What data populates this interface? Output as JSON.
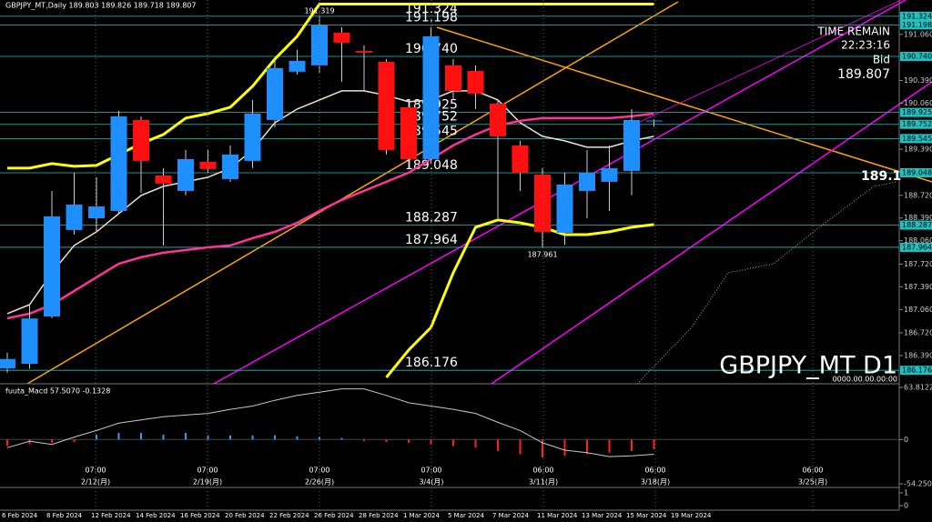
{
  "chart_data": [
    {
      "type": "candlestick",
      "title": "GBPJPY_MT,Daily 189.803 189.826 189.718 189.807",
      "info_panel": [
        "TIME REMAIN",
        "22:23:16",
        "Bid",
        "189.807"
      ],
      "watermark": "GBPJPY_MT D1",
      "watermark_sub": "0000.00.00.00:00",
      "trendline_label": 189.1,
      "high_low_labels": {
        "high": 191.319,
        "low": 187.961
      },
      "categories": [
        "6 Feb 2024",
        null,
        "8 Feb 2024",
        null,
        "12 Feb 2024",
        null,
        "14 Feb 2024",
        null,
        "16 Feb 2024",
        null,
        "20 Feb 2024",
        null,
        "22 Feb 2024",
        null,
        "26 Feb 2024",
        null,
        "28 Feb 2024",
        null,
        "1 Mar 2024",
        null,
        "5 Mar 2024",
        null,
        "7 Mar 2024",
        null,
        "11 Mar 2024",
        null,
        "13 Mar 2024",
        null,
        "15 Mar 2024",
        null,
        "19 Mar 2024"
      ],
      "open": [
        186.205,
        186.27,
        186.959,
        188.216,
        188.387,
        188.493,
        189.816,
        189.009,
        188.784,
        189.208,
        188.956,
        189.221,
        189.816,
        190.517,
        190.61,
        191.086,
        190.821,
        190.663,
        190.001,
        189.247,
        190.61,
        190.53,
        190.054,
        189.446,
        189.022,
        188.176,
        188.784,
        188.917,
        189.075,
        189.803,
        null
      ],
      "high": [
        186.43,
        187.13,
        188.784,
        189.049,
        188.983,
        189.948,
        189.869,
        189.115,
        189.379,
        189.38,
        189.446,
        190.107,
        190.702,
        190.835,
        191.319,
        191.165,
        190.901,
        190.702,
        190.107,
        191.165,
        190.702,
        190.61,
        190.107,
        189.512,
        189.115,
        189.049,
        189.38,
        189.446,
        189.975,
        189.826,
        null
      ],
      "low": [
        186.14,
        186.2,
        186.932,
        188.15,
        188.19,
        188.454,
        188.758,
        187.99,
        188.72,
        189.049,
        188.917,
        189.115,
        189.71,
        190.477,
        190.504,
        190.372,
        190.239,
        189.313,
        189.115,
        189.181,
        190.107,
        189.975,
        188.387,
        188.784,
        187.961,
        188.0,
        188.387,
        188.493,
        188.72,
        189.718,
        null
      ],
      "close": [
        186.34,
        186.93,
        188.414,
        188.586,
        188.559,
        189.869,
        189.221,
        188.89,
        189.247,
        189.102,
        189.313,
        189.909,
        190.57,
        190.676,
        191.192,
        190.94,
        190.795,
        189.38,
        189.247,
        191.033,
        190.239,
        190.2,
        189.578,
        189.049,
        188.189,
        188.877,
        189.049,
        189.115,
        189.816,
        189.807,
        null
      ],
      "up_color": "#1e8fff",
      "down_color": "#ff1010",
      "overlays": [
        {
          "color": "#f0e0d0",
          "width": 1.5,
          "values": [
            186.999,
            187.131,
            187.594,
            187.991,
            188.189,
            188.454,
            188.718,
            188.85,
            188.917,
            188.983,
            189.115,
            189.38,
            189.776,
            189.975,
            190.107,
            190.239,
            190.239,
            190.173,
            190.081,
            190.107,
            190.239,
            190.239,
            190.107,
            189.776,
            189.578,
            189.512,
            189.419,
            189.419,
            189.512,
            189.578,
            null
          ]
        },
        {
          "color": "#ff3399",
          "width": 2.5,
          "values": [
            186.932,
            186.999,
            187.131,
            187.329,
            187.528,
            187.726,
            187.819,
            187.885,
            187.924,
            187.964,
            187.991,
            188.097,
            188.189,
            188.321,
            188.493,
            188.652,
            188.784,
            188.917,
            189.049,
            189.247,
            189.446,
            189.604,
            189.737,
            189.803,
            189.843,
            189.843,
            189.843,
            189.843,
            189.869,
            189.909,
            null
          ]
        },
        {
          "color": "#ffff00",
          "width": 3,
          "values": [
            189.115,
            189.115,
            189.181,
            189.141,
            189.155,
            189.313,
            189.472,
            189.604,
            189.843,
            189.909,
            190.001,
            190.306,
            190.702,
            191.033,
            191.5,
            191.5,
            191.5,
            191.5,
            191.5,
            191.5,
            191.5,
            191.5,
            191.5,
            191.5,
            191.5,
            191.5,
            191.5,
            191.5,
            191.5,
            191.5,
            null
          ]
        },
        {
          "color": "#ffff00",
          "width": 3,
          "values": [
            null,
            null,
            null,
            null,
            null,
            null,
            null,
            null,
            null,
            null,
            null,
            null,
            null,
            null,
            null,
            null,
            null,
            186.073,
            186.47,
            186.8,
            187.594,
            188.255,
            188.361,
            188.321,
            188.255,
            188.149,
            188.149,
            188.189,
            188.255,
            188.295,
            null
          ]
        }
      ],
      "levels": [
        191.324,
        191.198,
        {
          "value": 190.74,
          "label": "190.740"
        },
        189.925,
        189.752,
        189.545,
        189.048,
        188.287,
        187.964,
        186.176
      ],
      "level_color": "#20c0c0",
      "ylim": [
        185.98,
        191.56
      ],
      "yticks": [
        {
          "value": 191.06,
          "label": "191.060"
        },
        {
          "value": 190.39,
          "label": "190.390"
        },
        {
          "value": 190.06,
          "label": "190.060"
        },
        {
          "value": 189.39,
          "label": "189.390"
        },
        {
          "value": 188.72,
          "label": "188.720"
        },
        {
          "value": 188.39,
          "label": "188.390"
        },
        {
          "value": 188.06,
          "label": "188.060"
        },
        {
          "value": 187.72,
          "label": "187.720"
        },
        {
          "value": 187.39,
          "label": "187.390"
        },
        {
          "value": 187.06,
          "label": "187.060"
        },
        {
          "value": 186.72,
          "label": "186.720"
        },
        {
          "value": 186.39,
          "label": "186.390"
        }
      ],
      "grid": false
    },
    {
      "type": "macd",
      "title": "fuuta_Macd 57.5070 -0.1328",
      "histogram": [
        -8,
        -6,
        -4,
        -3,
        6,
        8,
        8,
        6,
        8,
        5,
        5,
        5,
        5,
        4,
        3,
        2,
        -2,
        -3,
        -4,
        -6,
        -8,
        -10,
        -14,
        -18,
        -22,
        -20,
        -18,
        -16,
        -14,
        -12,
        null
      ],
      "signal": [
        -10,
        -2,
        -6,
        3,
        11,
        20,
        24,
        28,
        30,
        32,
        37,
        41,
        48,
        54,
        58,
        62,
        62,
        54,
        45,
        41,
        37,
        32,
        21,
        11,
        -4,
        -13,
        -16,
        -21,
        -20,
        -18,
        null
      ],
      "up_color": "#3399ff",
      "down_color": "#ff2020",
      "signal_color": "#c8c8c8",
      "ylim": [
        -54.2508,
        63.8122
      ],
      "yticks": [
        63.8122,
        0,
        -54.2508
      ],
      "time_markers": [
        {
          "time": "07:00",
          "date": "2/12(月)"
        },
        {
          "time": "07:00",
          "date": "2/19(月)"
        },
        {
          "time": "07:00",
          "date": "2/26(月)"
        },
        {
          "time": "07:00",
          "date": "3/4(月)"
        },
        {
          "time": "06:00",
          "date": "3/11(月)"
        },
        {
          "time": "06:00",
          "date": "3/18(月)"
        },
        {
          "time": "06:00",
          "date": "3/25(月)"
        }
      ]
    },
    {
      "type": "blank",
      "ylim": [
        0,
        1
      ],
      "yticks": [
        1,
        0
      ]
    }
  ]
}
